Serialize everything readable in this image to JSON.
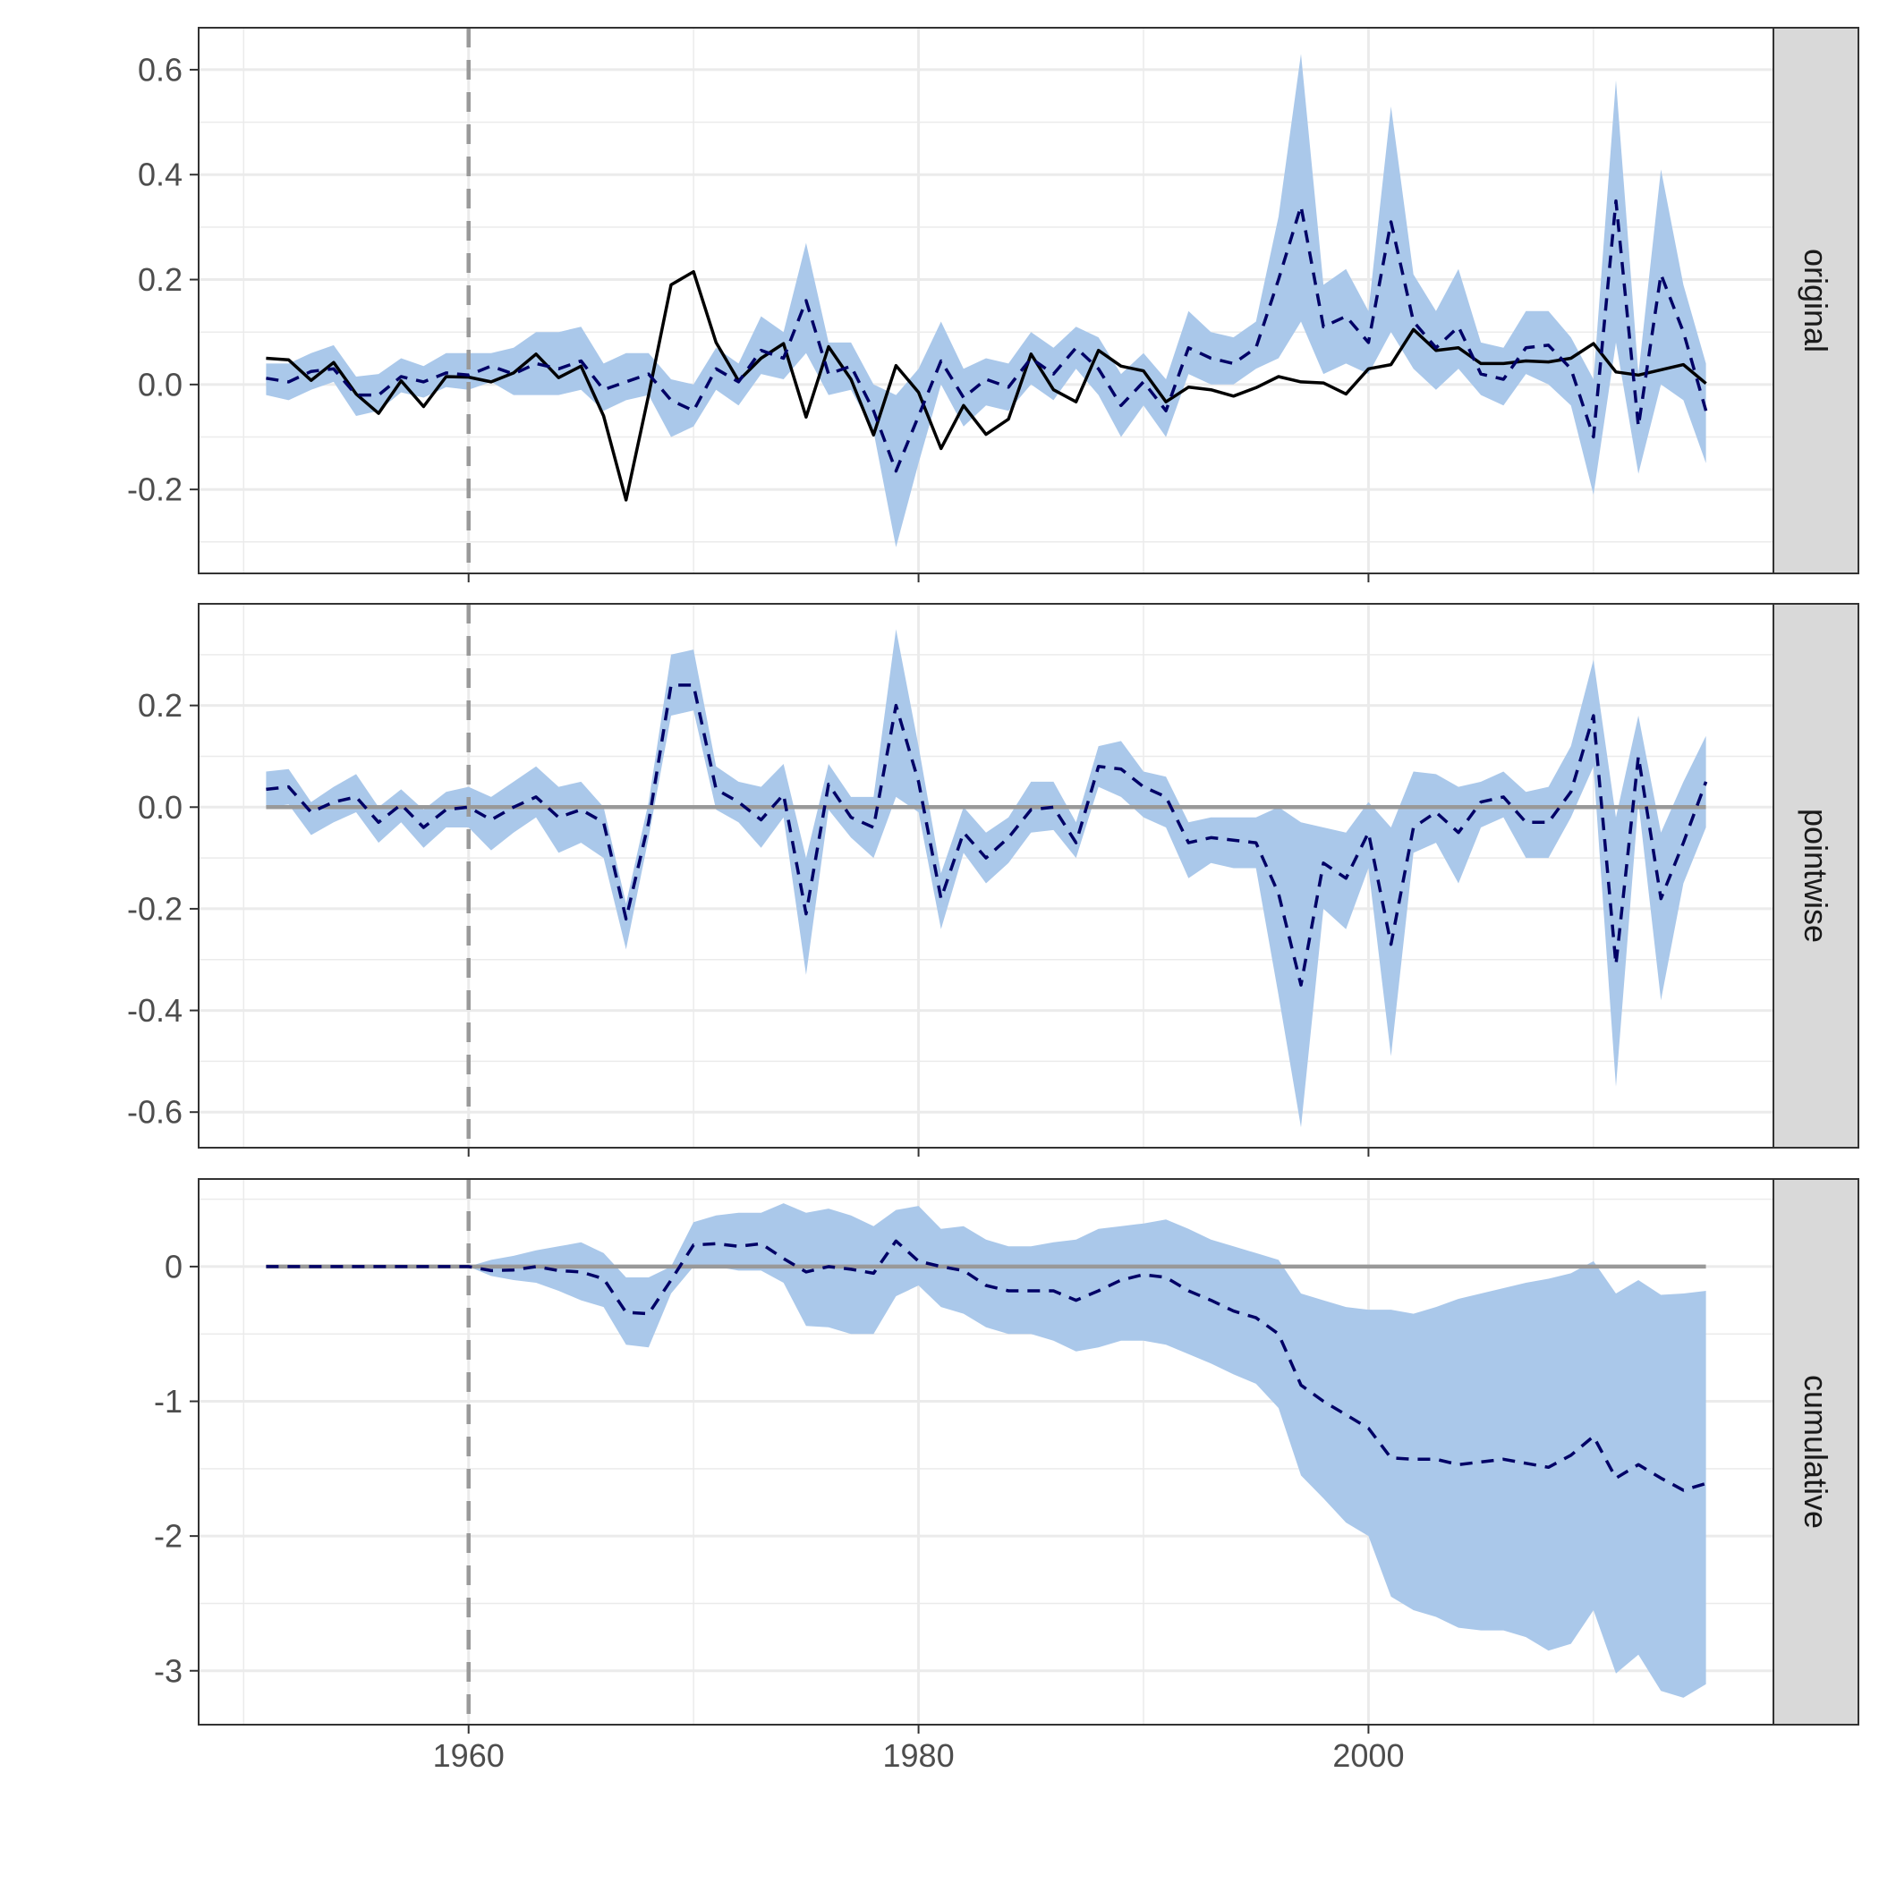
{
  "chart_data": {
    "type": "line",
    "x": [
      1951,
      1952,
      1953,
      1954,
      1955,
      1956,
      1957,
      1958,
      1959,
      1960,
      1961,
      1962,
      1963,
      1964,
      1965,
      1966,
      1967,
      1968,
      1969,
      1970,
      1971,
      1972,
      1973,
      1974,
      1975,
      1976,
      1977,
      1978,
      1979,
      1980,
      1981,
      1982,
      1983,
      1984,
      1985,
      1986,
      1987,
      1988,
      1989,
      1990,
      1991,
      1992,
      1993,
      1994,
      1995,
      1996,
      1997,
      1998,
      1999,
      2000,
      2001,
      2002,
      2003,
      2004,
      2005,
      2006,
      2007,
      2008,
      2009,
      2010,
      2011,
      2012,
      2013,
      2014,
      2015
    ],
    "xlim": [
      1948,
      2018
    ],
    "x_ticks": [
      "1960",
      "1980",
      "2000"
    ],
    "intervention": 1960,
    "colors": {
      "band": "#aac8ea",
      "prediction": "#000066",
      "observed": "#000000",
      "reference": "#999999",
      "strip": "#d9d9d9"
    },
    "panels": [
      {
        "label": "original",
        "ylim": [
          -0.36,
          0.68
        ],
        "y_ticks": [
          {
            "value": 0.6,
            "label": "0.6"
          },
          {
            "value": 0.4,
            "label": "0.4"
          },
          {
            "value": 0.2,
            "label": "0.2"
          },
          {
            "value": 0.0,
            "label": "0.0"
          },
          {
            "value": -0.2,
            "label": "-0.2"
          }
        ],
        "observed": [
          0.05,
          0.047,
          0.008,
          0.042,
          -0.018,
          -0.055,
          0.007,
          -0.042,
          0.015,
          0.014,
          0.005,
          0.022,
          0.058,
          0.013,
          0.035,
          -0.06,
          -0.22,
          -0.02,
          0.19,
          0.215,
          0.08,
          0.007,
          0.05,
          0.078,
          -0.062,
          0.072,
          0.01,
          -0.096,
          0.036,
          -0.015,
          -0.122,
          -0.04,
          -0.095,
          -0.066,
          0.058,
          -0.01,
          -0.033,
          0.065,
          0.035,
          0.026,
          -0.033,
          -0.005,
          -0.01,
          -0.022,
          -0.006,
          0.015,
          0.005,
          0.003,
          -0.018,
          0.03,
          0.038,
          0.105,
          0.065,
          0.07,
          0.04,
          0.04,
          0.045,
          0.043,
          0.05,
          0.078,
          0.024,
          0.018,
          0.028,
          0.038,
          0.002
        ],
        "prediction": [
          0.012,
          0.005,
          0.025,
          0.03,
          -0.02,
          -0.02,
          0.015,
          0.005,
          0.022,
          0.018,
          0.035,
          0.02,
          0.04,
          0.03,
          0.045,
          -0.01,
          0.005,
          0.02,
          -0.03,
          -0.05,
          0.03,
          0.005,
          0.065,
          0.05,
          0.16,
          0.02,
          0.035,
          -0.05,
          -0.165,
          -0.06,
          0.045,
          -0.025,
          0.01,
          -0.005,
          0.05,
          0.02,
          0.07,
          0.03,
          -0.04,
          0.005,
          -0.05,
          0.07,
          0.05,
          0.04,
          0.07,
          0.2,
          0.34,
          0.11,
          0.13,
          0.08,
          0.31,
          0.12,
          0.07,
          0.11,
          0.02,
          0.01,
          0.07,
          0.075,
          0.03,
          -0.1,
          0.35,
          -0.08,
          0.21,
          0.1,
          -0.05
        ],
        "lower": [
          -0.02,
          -0.03,
          -0.01,
          0.005,
          -0.06,
          -0.05,
          -0.015,
          -0.025,
          -0.005,
          -0.01,
          0.005,
          -0.02,
          -0.02,
          -0.02,
          -0.01,
          -0.05,
          -0.03,
          -0.02,
          -0.1,
          -0.08,
          -0.01,
          -0.04,
          0.02,
          0.01,
          0.06,
          -0.02,
          -0.01,
          -0.09,
          -0.31,
          -0.15,
          0.0,
          -0.08,
          -0.04,
          -0.05,
          0.0,
          -0.03,
          0.03,
          -0.02,
          -0.1,
          -0.04,
          -0.1,
          0.02,
          0.0,
          0.0,
          0.03,
          0.05,
          0.12,
          0.02,
          0.04,
          0.02,
          0.1,
          0.03,
          -0.01,
          0.03,
          -0.02,
          -0.04,
          0.02,
          0.0,
          -0.04,
          -0.21,
          0.08,
          -0.17,
          0.0,
          -0.03,
          -0.15
        ],
        "upper": [
          0.04,
          0.04,
          0.06,
          0.075,
          0.015,
          0.02,
          0.05,
          0.035,
          0.06,
          0.06,
          0.06,
          0.07,
          0.1,
          0.1,
          0.11,
          0.04,
          0.06,
          0.06,
          0.01,
          0.0,
          0.07,
          0.04,
          0.13,
          0.1,
          0.27,
          0.08,
          0.08,
          0.0,
          -0.02,
          0.03,
          0.12,
          0.03,
          0.05,
          0.04,
          0.1,
          0.07,
          0.11,
          0.09,
          0.02,
          0.06,
          0.01,
          0.14,
          0.1,
          0.09,
          0.12,
          0.32,
          0.63,
          0.19,
          0.22,
          0.14,
          0.53,
          0.21,
          0.14,
          0.22,
          0.08,
          0.07,
          0.14,
          0.14,
          0.09,
          0.01,
          0.58,
          0.02,
          0.41,
          0.19,
          0.04
        ]
      },
      {
        "label": "pointwise",
        "ylim": [
          -0.67,
          0.4
        ],
        "y_ticks": [
          {
            "value": 0.2,
            "label": "0.2"
          },
          {
            "value": 0.0,
            "label": "0.0"
          },
          {
            "value": -0.2,
            "label": "-0.2"
          },
          {
            "value": -0.4,
            "label": "-0.4"
          },
          {
            "value": -0.6,
            "label": "-0.6"
          }
        ],
        "reference": 0,
        "prediction": [
          0.035,
          0.04,
          -0.01,
          0.01,
          0.02,
          -0.03,
          0.005,
          -0.04,
          -0.005,
          0.0,
          -0.025,
          0.0,
          0.02,
          -0.02,
          -0.005,
          -0.03,
          -0.22,
          -0.03,
          0.24,
          0.24,
          0.035,
          0.01,
          -0.025,
          0.025,
          -0.21,
          0.045,
          -0.02,
          -0.04,
          0.2,
          0.05,
          -0.18,
          -0.05,
          -0.1,
          -0.06,
          -0.005,
          0.0,
          -0.07,
          0.08,
          0.075,
          0.04,
          0.02,
          -0.07,
          -0.06,
          -0.065,
          -0.07,
          -0.17,
          -0.35,
          -0.11,
          -0.14,
          -0.05,
          -0.27,
          -0.04,
          -0.01,
          -0.05,
          0.01,
          0.02,
          -0.03,
          -0.03,
          0.03,
          0.18,
          -0.31,
          0.1,
          -0.18,
          -0.07,
          0.05
        ],
        "lower": [
          0.0,
          0.005,
          -0.055,
          -0.03,
          -0.01,
          -0.07,
          -0.03,
          -0.08,
          -0.04,
          -0.04,
          -0.085,
          -0.05,
          -0.02,
          -0.09,
          -0.07,
          -0.1,
          -0.28,
          -0.06,
          0.18,
          0.19,
          -0.005,
          -0.03,
          -0.08,
          -0.02,
          -0.33,
          -0.005,
          -0.06,
          -0.1,
          0.02,
          -0.01,
          -0.24,
          -0.09,
          -0.15,
          -0.11,
          -0.05,
          -0.045,
          -0.1,
          0.04,
          0.02,
          -0.02,
          -0.04,
          -0.14,
          -0.11,
          -0.12,
          -0.12,
          -0.37,
          -0.63,
          -0.2,
          -0.24,
          -0.12,
          -0.49,
          -0.09,
          -0.07,
          -0.15,
          -0.04,
          -0.02,
          -0.1,
          -0.1,
          -0.02,
          0.08,
          -0.55,
          0.01,
          -0.38,
          -0.15,
          -0.04
        ],
        "upper": [
          0.07,
          0.075,
          0.01,
          0.04,
          0.065,
          0.0,
          0.035,
          -0.005,
          0.03,
          0.04,
          0.02,
          0.05,
          0.08,
          0.04,
          0.05,
          0.0,
          -0.19,
          0.01,
          0.3,
          0.31,
          0.08,
          0.05,
          0.04,
          0.085,
          -0.1,
          0.085,
          0.02,
          0.02,
          0.35,
          0.12,
          -0.13,
          0.0,
          -0.05,
          -0.02,
          0.05,
          0.05,
          -0.03,
          0.12,
          0.13,
          0.07,
          0.06,
          -0.03,
          -0.02,
          -0.02,
          -0.02,
          0.0,
          -0.03,
          -0.04,
          -0.05,
          0.01,
          -0.04,
          0.07,
          0.065,
          0.04,
          0.05,
          0.07,
          0.03,
          0.04,
          0.12,
          0.29,
          -0.02,
          0.18,
          -0.05,
          0.05,
          0.14
        ]
      },
      {
        "label": "cumulative",
        "ylim": [
          -3.4,
          0.65
        ],
        "y_ticks": [
          {
            "value": 0,
            "label": "0"
          },
          {
            "value": -1,
            "label": "-1"
          },
          {
            "value": -2,
            "label": "-2"
          },
          {
            "value": -3,
            "label": "-3"
          }
        ],
        "reference": 0,
        "prediction": [
          0,
          0,
          0,
          0,
          0,
          0,
          0,
          0,
          0,
          0,
          -0.03,
          -0.025,
          0.0,
          -0.03,
          -0.04,
          -0.09,
          -0.34,
          -0.35,
          -0.1,
          0.16,
          0.17,
          0.15,
          0.17,
          0.06,
          -0.04,
          0.0,
          -0.02,
          -0.05,
          0.19,
          0.04,
          0.0,
          -0.03,
          -0.14,
          -0.18,
          -0.18,
          -0.18,
          -0.25,
          -0.18,
          -0.1,
          -0.06,
          -0.08,
          -0.18,
          -0.25,
          -0.33,
          -0.38,
          -0.5,
          -0.88,
          -1.0,
          -1.1,
          -1.2,
          -1.42,
          -1.43,
          -1.43,
          -1.47,
          -1.45,
          -1.43,
          -1.46,
          -1.49,
          -1.4,
          -1.26,
          -1.57,
          -1.47,
          -1.57,
          -1.66,
          -1.61
        ],
        "lower": [
          0,
          0,
          0,
          0,
          0,
          0,
          0,
          0,
          0,
          0,
          -0.07,
          -0.1,
          -0.12,
          -0.18,
          -0.25,
          -0.3,
          -0.58,
          -0.6,
          -0.2,
          0.0,
          0.0,
          -0.03,
          -0.03,
          -0.12,
          -0.44,
          -0.45,
          -0.5,
          -0.5,
          -0.22,
          -0.14,
          -0.3,
          -0.35,
          -0.45,
          -0.5,
          -0.5,
          -0.55,
          -0.63,
          -0.6,
          -0.55,
          -0.55,
          -0.58,
          -0.65,
          -0.72,
          -0.8,
          -0.87,
          -1.05,
          -1.55,
          -1.72,
          -1.9,
          -2.0,
          -2.45,
          -2.55,
          -2.6,
          -2.68,
          -2.7,
          -2.7,
          -2.75,
          -2.85,
          -2.8,
          -2.55,
          -3.02,
          -2.88,
          -3.15,
          -3.2,
          -3.1
        ],
        "upper": [
          0,
          0,
          0,
          0,
          0,
          0,
          0,
          0,
          0,
          0,
          0.05,
          0.08,
          0.12,
          0.15,
          0.18,
          0.1,
          -0.08,
          -0.08,
          0.0,
          0.33,
          0.38,
          0.4,
          0.4,
          0.47,
          0.4,
          0.43,
          0.38,
          0.3,
          0.42,
          0.45,
          0.28,
          0.3,
          0.2,
          0.15,
          0.15,
          0.18,
          0.2,
          0.28,
          0.3,
          0.32,
          0.35,
          0.28,
          0.2,
          0.15,
          0.1,
          0.05,
          -0.2,
          -0.25,
          -0.3,
          -0.32,
          -0.32,
          -0.35,
          -0.3,
          -0.24,
          -0.2,
          -0.16,
          -0.12,
          -0.09,
          -0.05,
          0.04,
          -0.2,
          -0.1,
          -0.21,
          -0.2,
          -0.18
        ]
      }
    ]
  }
}
